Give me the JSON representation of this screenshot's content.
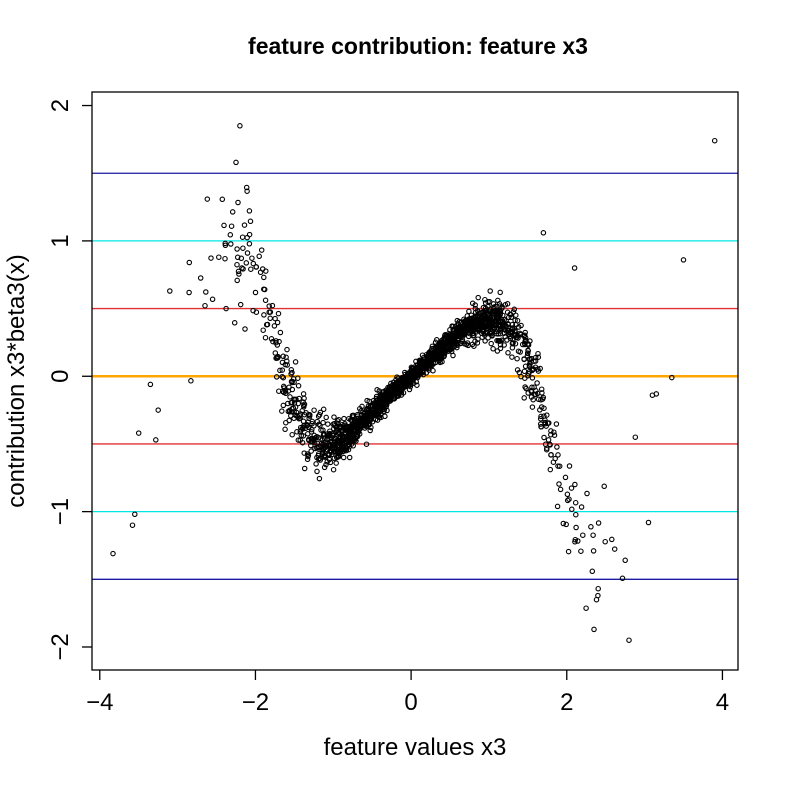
{
  "chart_data": {
    "type": "scatter",
    "title": "feature contribution: feature x3",
    "xlabel": "feature values x3",
    "ylabel": "contribution  x3*beta3(x)",
    "xlim": [
      -4.1,
      4.2
    ],
    "ylim": [
      -2.17,
      2.1
    ],
    "xticks": [
      -4,
      -2,
      0,
      2,
      4
    ],
    "yticks": [
      -2,
      -1,
      0,
      1,
      2
    ],
    "xtick_labels": [
      "−4",
      "−2",
      "0",
      "2",
      "4"
    ],
    "ytick_labels": [
      "−2",
      "−1",
      "0",
      "1",
      "2"
    ],
    "grid": false,
    "reference_lines": [
      {
        "y": 1.5,
        "color": "#1a1aa6"
      },
      {
        "y": 1.0,
        "color": "#00e5e5"
      },
      {
        "y": 0.5,
        "color": "#e03030"
      },
      {
        "y": 0.0,
        "color": "#ffa500"
      },
      {
        "y": -0.5,
        "color": "#e03030"
      },
      {
        "y": -1.0,
        "color": "#00e5e5"
      },
      {
        "y": -1.5,
        "color": "#1a1aa6"
      }
    ],
    "point_trend": {
      "x": [
        -3.0,
        -2.6,
        -2.2,
        -2.0,
        -1.8,
        -1.6,
        -1.4,
        -1.2,
        -1.0,
        -0.8,
        -0.6,
        -0.4,
        -0.2,
        0.0,
        0.2,
        0.4,
        0.6,
        0.8,
        1.0,
        1.2,
        1.4,
        1.6,
        1.8,
        2.0,
        2.2,
        2.4,
        2.6,
        2.8
      ],
      "y": [
        0.3,
        0.85,
        1.0,
        0.85,
        0.35,
        -0.1,
        -0.35,
        -0.48,
        -0.5,
        -0.44,
        -0.33,
        -0.21,
        -0.1,
        0.0,
        0.1,
        0.21,
        0.3,
        0.38,
        0.42,
        0.38,
        0.22,
        -0.1,
        -0.45,
        -0.85,
        -1.1,
        -1.25,
        -1.3,
        -1.25
      ]
    },
    "point_count": 2000,
    "outliers": [
      {
        "x": -3.83,
        "y": -1.31
      },
      {
        "x": -3.55,
        "y": -1.02
      },
      {
        "x": -3.58,
        "y": -1.1
      },
      {
        "x": -3.5,
        "y": -0.42
      },
      {
        "x": -3.35,
        "y": -0.06
      },
      {
        "x": -3.28,
        "y": -0.47
      },
      {
        "x": -3.25,
        "y": -0.25
      },
      {
        "x": -3.1,
        "y": 0.63
      },
      {
        "x": -2.2,
        "y": 1.85
      },
      {
        "x": -2.25,
        "y": 1.58
      },
      {
        "x": 1.7,
        "y": 1.06
      },
      {
        "x": 2.1,
        "y": 0.8
      },
      {
        "x": 2.4,
        "y": -1.62
      },
      {
        "x": 2.35,
        "y": -1.87
      },
      {
        "x": 2.8,
        "y": -1.95
      },
      {
        "x": 2.88,
        "y": -0.45
      },
      {
        "x": 3.05,
        "y": -1.08
      },
      {
        "x": 3.1,
        "y": -0.14
      },
      {
        "x": 3.15,
        "y": -0.13
      },
      {
        "x": 3.35,
        "y": -0.01
      },
      {
        "x": 3.5,
        "y": 0.86
      },
      {
        "x": 3.9,
        "y": 1.74
      }
    ]
  }
}
